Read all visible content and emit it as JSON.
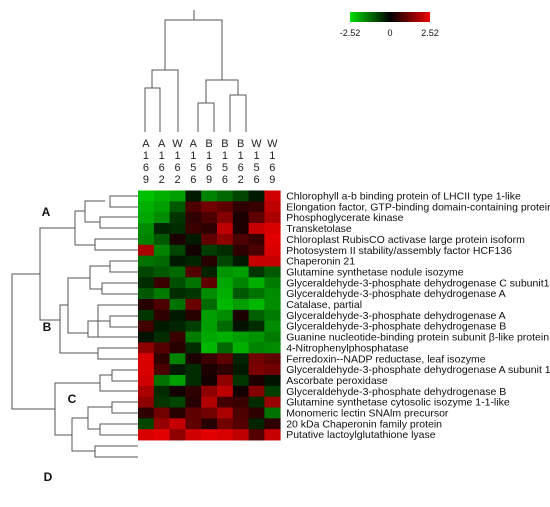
{
  "chart_data": {
    "type": "heatmap",
    "columns": [
      "A169",
      "A162",
      "W162",
      "A156",
      "B169",
      "B156",
      "B162",
      "W156",
      "W169"
    ],
    "rows": [
      "Chlorophyll a-b binding protein of LHCII type 1-like",
      "Elongation factor, GTP-binding domain-containing protein",
      "Phosphoglycerate kinase",
      "Transketolase",
      "Chloroplast RubisCO activase large protein isoform",
      "Photosystem II stability/assembly factor HCF136",
      "Chaperonin 21",
      "Glutamine synthetase nodule isozyme",
      "Glyceraldehyde-3-phosphate dehydrogenase C subunit1",
      "Glyceraldehyde-3-phosphate dehydrogenase A",
      "Catalase, partial",
      "Glyceraldehyde-3-phosphate dehydrogenase A",
      "Glyceraldehyde-3-phosphate dehydrogenase B",
      "Guanine nucleotide-binding protein subunit β-like protein",
      "4-Nitrophenylphosphatase",
      "Ferredoxin--NADP reductase, leaf isozyme",
      "Glyceraldehyde-3-phosphate dehydrogenase A subunit 1",
      "Ascorbate peroxidase",
      "Glyceraldehyde-3-phosphate dehydrogenase B",
      "Glutamine synthetase cytosolic isozyme 1-1-like",
      "Monomeric lectin SNAlm precursor",
      "20 kDa Chaperonin family protein",
      "Putative lactoylglutathione lyase"
    ],
    "values": [
      [
        -2.2,
        -2.0,
        -1.8,
        -0.3,
        -1.5,
        -1.2,
        -0.8,
        -0.3,
        2.2
      ],
      [
        -2.0,
        -1.8,
        -1.0,
        0.8,
        1.2,
        1.0,
        0.5,
        0.6,
        2.0
      ],
      [
        -1.9,
        -1.6,
        -0.6,
        0.5,
        0.8,
        1.4,
        0.3,
        1.0,
        1.8
      ],
      [
        -1.6,
        -0.4,
        -0.5,
        0.6,
        0.5,
        2.0,
        0.3,
        2.1,
        2.3
      ],
      [
        -1.5,
        -1.0,
        0.3,
        -0.3,
        1.0,
        1.5,
        0.8,
        0.6,
        2.4
      ],
      [
        1.8,
        -1.5,
        -0.8,
        0.2,
        -0.7,
        -0.5,
        0.5,
        0.8,
        2.3
      ],
      [
        -1.3,
        -1.2,
        -0.3,
        -0.4,
        0.4,
        -0.8,
        -0.3,
        2.1,
        2.1
      ],
      [
        -0.8,
        -1.0,
        -1.2,
        0.9,
        -0.4,
        -1.7,
        -1.8,
        -0.6,
        -1.0
      ],
      [
        -0.5,
        0.6,
        -0.9,
        -1.3,
        1.0,
        -1.9,
        -1.5,
        -2.0,
        -1.4
      ],
      [
        -1.0,
        -1.4,
        -0.5,
        -0.6,
        -1.6,
        -2.0,
        -1.0,
        -1.3,
        -1.6
      ],
      [
        0.4,
        0.8,
        -1.3,
        1.1,
        -1.2,
        -2.1,
        -1.8,
        -2.1,
        -1.6
      ],
      [
        -0.6,
        0.5,
        -0.3,
        0.4,
        -1.8,
        -1.6,
        0.3,
        -1.1,
        -1.4
      ],
      [
        0.7,
        -0.3,
        -0.4,
        -0.7,
        -1.8,
        -1.2,
        -0.2,
        -0.5,
        -1.6
      ],
      [
        -0.2,
        -0.5,
        0.6,
        -1.4,
        -1.9,
        -2.0,
        -1.8,
        -1.7,
        -1.4
      ],
      [
        1.5,
        0.9,
        0.4,
        -0.5,
        -2.1,
        -1.2,
        -2.0,
        -1.5,
        -1.6
      ],
      [
        2.3,
        0.5,
        -1.5,
        0.3,
        0.6,
        1.0,
        -0.4,
        1.2,
        1.0
      ],
      [
        2.3,
        0.8,
        -0.3,
        -0.5,
        0.3,
        0.5,
        -0.3,
        1.3,
        1.2
      ],
      [
        2.2,
        -1.3,
        -1.8,
        -0.5,
        0.2,
        1.5,
        -0.6,
        0.3,
        -0.2
      ],
      [
        1.8,
        -0.5,
        0.2,
        0.5,
        1.5,
        2.0,
        0.2,
        1.4,
        -0.7
      ],
      [
        1.5,
        -0.6,
        -0.8,
        0.4,
        1.9,
        0.7,
        0.6,
        -0.5,
        1.6
      ],
      [
        0.5,
        1.2,
        0.4,
        1.0,
        1.2,
        1.8,
        0.8,
        0.5,
        -1.3
      ],
      [
        -0.8,
        1.6,
        2.1,
        1.0,
        0.4,
        1.2,
        0.9,
        -0.4,
        0.5
      ],
      [
        2.3,
        2.4,
        1.5,
        2.2,
        2.4,
        2.3,
        2.0,
        0.9,
        2.1
      ]
    ],
    "colorscale": {
      "min": -2.52,
      "mid": 0,
      "max": 2.52,
      "min_label": "-2.52",
      "mid_label": "0",
      "max_label": "2.52",
      "low_color": "#00dd00",
      "mid_color": "#000000",
      "high_color": "#ee0000"
    },
    "row_clusters": [
      {
        "label": "A",
        "rows": [
          0,
          6
        ]
      },
      {
        "label": "B",
        "rows": [
          7,
          14
        ]
      },
      {
        "label": "C",
        "rows": [
          15,
          17
        ]
      },
      {
        "label": "D",
        "rows": [
          18,
          22
        ]
      }
    ]
  }
}
